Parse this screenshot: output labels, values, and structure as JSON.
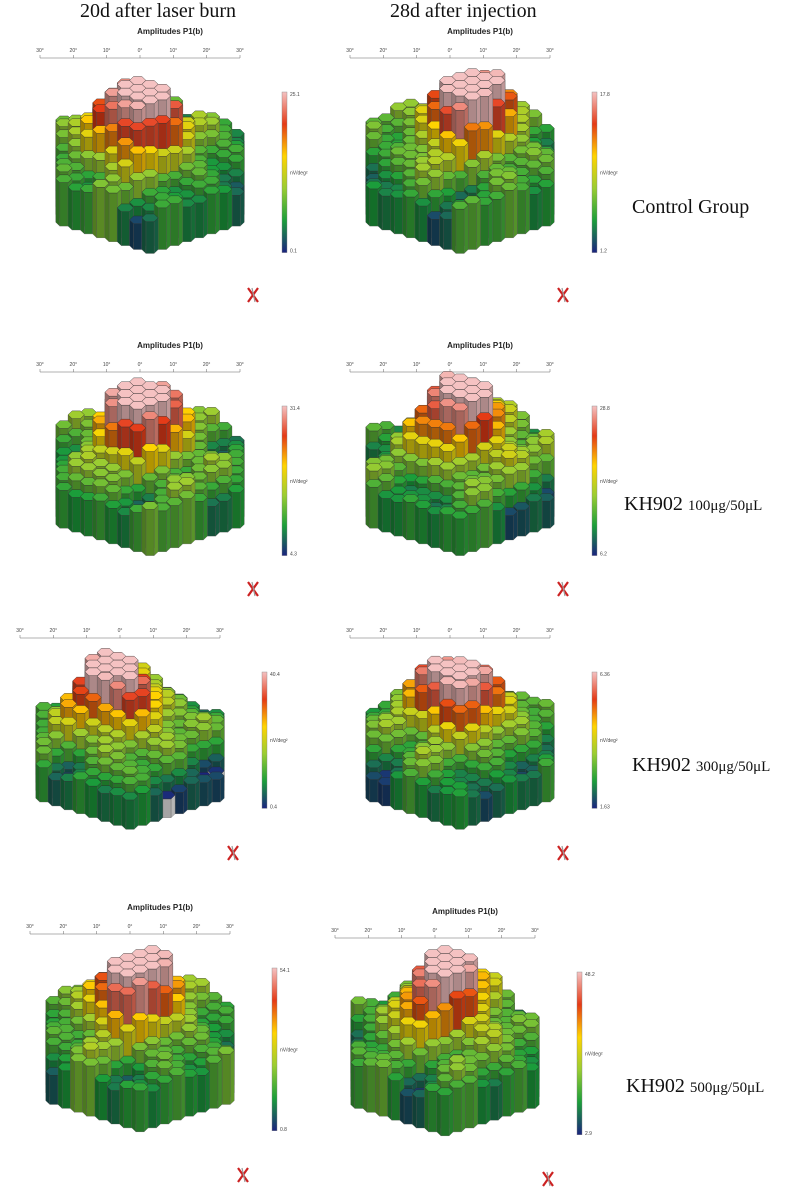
{
  "headers": [
    "20d after laser burn",
    "28d after injection"
  ],
  "groups": [
    {
      "name": "Control Group",
      "dose": ""
    },
    {
      "name": "KH902 ",
      "dose": "100μg/50μL"
    },
    {
      "name": "KH902 ",
      "dose": "300μg/50μL"
    },
    {
      "name": "KH902 ",
      "dose": "500μg/50μL"
    }
  ],
  "panel_title": "Amplitudes P1(b)",
  "axis_ticks": [
    "30°",
    "20°",
    "10°",
    "0°",
    "10°",
    "20°",
    "30°"
  ],
  "scale_unit": "nV/deg²",
  "panels": [
    {
      "title_shown": true,
      "max": "25.1",
      "min": "0.1",
      "peak": [
        0.42,
        0.48
      ]
    },
    {
      "title_shown": true,
      "max": "17.8",
      "min": "1.2",
      "peak": [
        0.55,
        0.4
      ]
    },
    {
      "title_shown": true,
      "max": "31.4",
      "min": "4.3",
      "peak": [
        0.45,
        0.42
      ]
    },
    {
      "title_shown": true,
      "max": "28.8",
      "min": "6.2",
      "peak": [
        0.52,
        0.38
      ]
    },
    {
      "title_shown": false,
      "max": "40.4",
      "min": "0.4",
      "peak": [
        0.42,
        0.35
      ]
    },
    {
      "title_shown": false,
      "max": "6.36",
      "min": "1.63",
      "peak": [
        0.48,
        0.35
      ]
    },
    {
      "title_shown": true,
      "max": "54.1",
      "min": "0.8",
      "peak": [
        0.47,
        0.42
      ]
    },
    {
      "title_shown": true,
      "max": "48.2",
      "min": "2.9",
      "peak": [
        0.5,
        0.4
      ]
    }
  ],
  "colors": {
    "low": "#1a237e",
    "mid_low": "#1b9e3a",
    "mid": "#9acd32",
    "mid_high": "#ffd400",
    "high": "#e53a16",
    "peak": "#f5c2c2",
    "pillar": "#c9c9c9"
  }
}
